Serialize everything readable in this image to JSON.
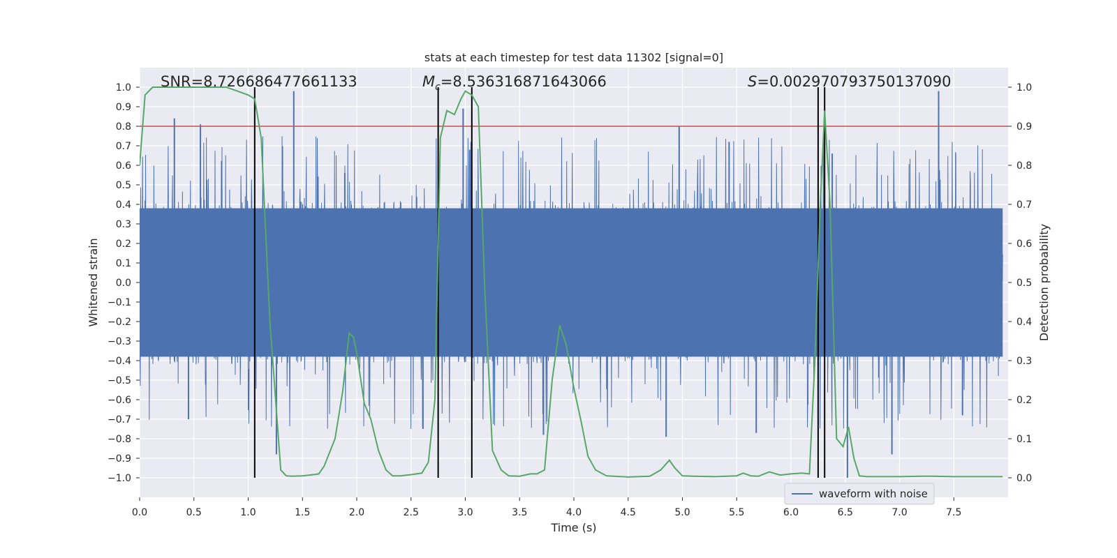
{
  "chart_data": {
    "type": "line",
    "title": "stats at each timestep for test data 11302 [signal=0]",
    "xlabel": "Time (s)",
    "ylabel_left": "Whitened strain",
    "ylabel_right": "Detection probability",
    "xlim": [
      0,
      8.0
    ],
    "ylim_left": [
      -1.1,
      1.1
    ],
    "ylim_right": [
      -0.05,
      1.05
    ],
    "x_ticks": [
      0.0,
      0.5,
      1.0,
      1.5,
      2.0,
      2.5,
      3.0,
      3.5,
      4.0,
      4.5,
      5.0,
      5.5,
      6.0,
      6.5,
      7.0,
      7.5
    ],
    "x_tick_labels": [
      "0.0",
      "0.5",
      "1.0",
      "1.5",
      "2.0",
      "2.5",
      "3.0",
      "3.5",
      "4.0",
      "4.5",
      "5.0",
      "5.5",
      "6.0",
      "6.5",
      "7.0",
      "7.5"
    ],
    "y_left_ticks": [
      1.0,
      0.9,
      0.8,
      0.7,
      0.6,
      0.5,
      0.4,
      0.3,
      0.2,
      0.1,
      0.0,
      -0.1,
      -0.2,
      -0.3,
      -0.4,
      -0.5,
      -0.6,
      -0.7,
      -0.8,
      -0.9,
      -1.0
    ],
    "y_left_tick_labels": [
      "1.0",
      "0.9",
      "0.8",
      "0.7",
      "0.6",
      "0.5",
      "0.4",
      "0.3",
      "0.2",
      "0.1",
      "0.0",
      "−0.1",
      "−0.2",
      "−0.3",
      "−0.4",
      "−0.5",
      "−0.6",
      "−0.7",
      "−0.8",
      "−0.9",
      "−1.0"
    ],
    "y_right_ticks": [
      1.0,
      0.9,
      0.8,
      0.7,
      0.6,
      0.5,
      0.4,
      0.3,
      0.2,
      0.1,
      0.0
    ],
    "y_right_tick_labels": [
      "1.0",
      "0.9",
      "0.8",
      "0.7",
      "0.6",
      "0.5",
      "0.4",
      "0.3",
      "0.2",
      "0.1",
      "0.0"
    ],
    "annotations": {
      "snr": "SNR=8.726686477661133",
      "mc_symbol": "M",
      "mc_subscript": "c",
      "mc_value": "=8.536316871643066",
      "s_symbol": "S",
      "s_value": "=0.002970793750137090"
    },
    "threshold": {
      "value": 0.9,
      "axis": "right",
      "color": "#c44e52"
    },
    "vertical_markers": [
      1.06,
      2.75,
      3.06,
      6.25,
      6.31
    ],
    "waveform": {
      "name": "waveform with noise",
      "color": "#4c72b0",
      "description_envelope": "dense noise, bulk between -0.4 and 0.4 with spikes up to about 0.98 and down to about -1.0",
      "spikes_up": [
        [
          0.32,
          0.84
        ],
        [
          0.56,
          0.81
        ],
        [
          1.42,
          0.98
        ],
        [
          2.98,
          0.89
        ],
        [
          3.04,
          0.68
        ],
        [
          4.97,
          0.8
        ],
        [
          7.36,
          0.98
        ],
        [
          1.89,
          0.56
        ],
        [
          5.43,
          0.72
        ],
        [
          6.38,
          0.66
        ]
      ],
      "spikes_down": [
        [
          1.26,
          -0.88
        ],
        [
          6.52,
          -1.0
        ],
        [
          6.93,
          -0.88
        ],
        [
          3.72,
          -0.78
        ],
        [
          4.85,
          -0.79
        ],
        [
          5.68,
          -0.77
        ],
        [
          0.45,
          -0.7
        ],
        [
          2.61,
          -0.75
        ],
        [
          7.58,
          -0.68
        ]
      ]
    },
    "probability": {
      "name": "detection probability",
      "color": "#55a868",
      "x": [
        0.0,
        0.05,
        0.12,
        0.2,
        0.4,
        0.6,
        0.8,
        0.9,
        1.0,
        1.06,
        1.12,
        1.2,
        1.3,
        1.35,
        1.4,
        1.5,
        1.6,
        1.65,
        1.7,
        1.8,
        1.87,
        1.93,
        1.97,
        2.0,
        2.07,
        2.13,
        2.2,
        2.27,
        2.33,
        2.4,
        2.5,
        2.6,
        2.66,
        2.72,
        2.77,
        2.83,
        2.9,
        2.96,
        3.0,
        3.06,
        3.12,
        3.18,
        3.25,
        3.33,
        3.4,
        3.5,
        3.6,
        3.66,
        3.73,
        3.8,
        3.87,
        3.93,
        4.0,
        4.07,
        4.13,
        4.2,
        4.3,
        4.5,
        4.7,
        4.8,
        4.88,
        4.93,
        5.0,
        5.1,
        5.3,
        5.5,
        5.56,
        5.63,
        5.7,
        5.8,
        5.9,
        6.0,
        6.1,
        6.17,
        6.22,
        6.27,
        6.31,
        6.36,
        6.42,
        6.48,
        6.53,
        6.58,
        6.63,
        6.7,
        6.8,
        7.0,
        7.2,
        7.3,
        7.5,
        7.7,
        7.95
      ],
      "y": [
        0.8,
        0.98,
        1.0,
        1.0,
        1.0,
        1.0,
        1.0,
        0.99,
        0.98,
        0.97,
        0.87,
        0.4,
        0.02,
        0.005,
        0.004,
        0.005,
        0.008,
        0.01,
        0.03,
        0.1,
        0.22,
        0.37,
        0.36,
        0.32,
        0.19,
        0.15,
        0.07,
        0.02,
        0.005,
        0.005,
        0.008,
        0.012,
        0.04,
        0.2,
        0.87,
        0.94,
        0.93,
        0.97,
        0.99,
        0.98,
        0.95,
        0.48,
        0.07,
        0.02,
        0.005,
        0.004,
        0.01,
        0.01,
        0.02,
        0.25,
        0.39,
        0.34,
        0.23,
        0.14,
        0.055,
        0.02,
        0.005,
        0.002,
        0.004,
        0.02,
        0.045,
        0.025,
        0.005,
        0.004,
        0.003,
        0.005,
        0.012,
        0.005,
        0.004,
        0.015,
        0.007,
        0.01,
        0.012,
        0.01,
        0.3,
        0.7,
        0.94,
        0.7,
        0.1,
        0.08,
        0.13,
        0.05,
        0.005,
        0.003,
        0.003,
        0.003,
        0.004,
        0.004,
        0.003,
        0.003,
        0.003
      ]
    }
  },
  "legend": {
    "label": "waveform with noise"
  }
}
